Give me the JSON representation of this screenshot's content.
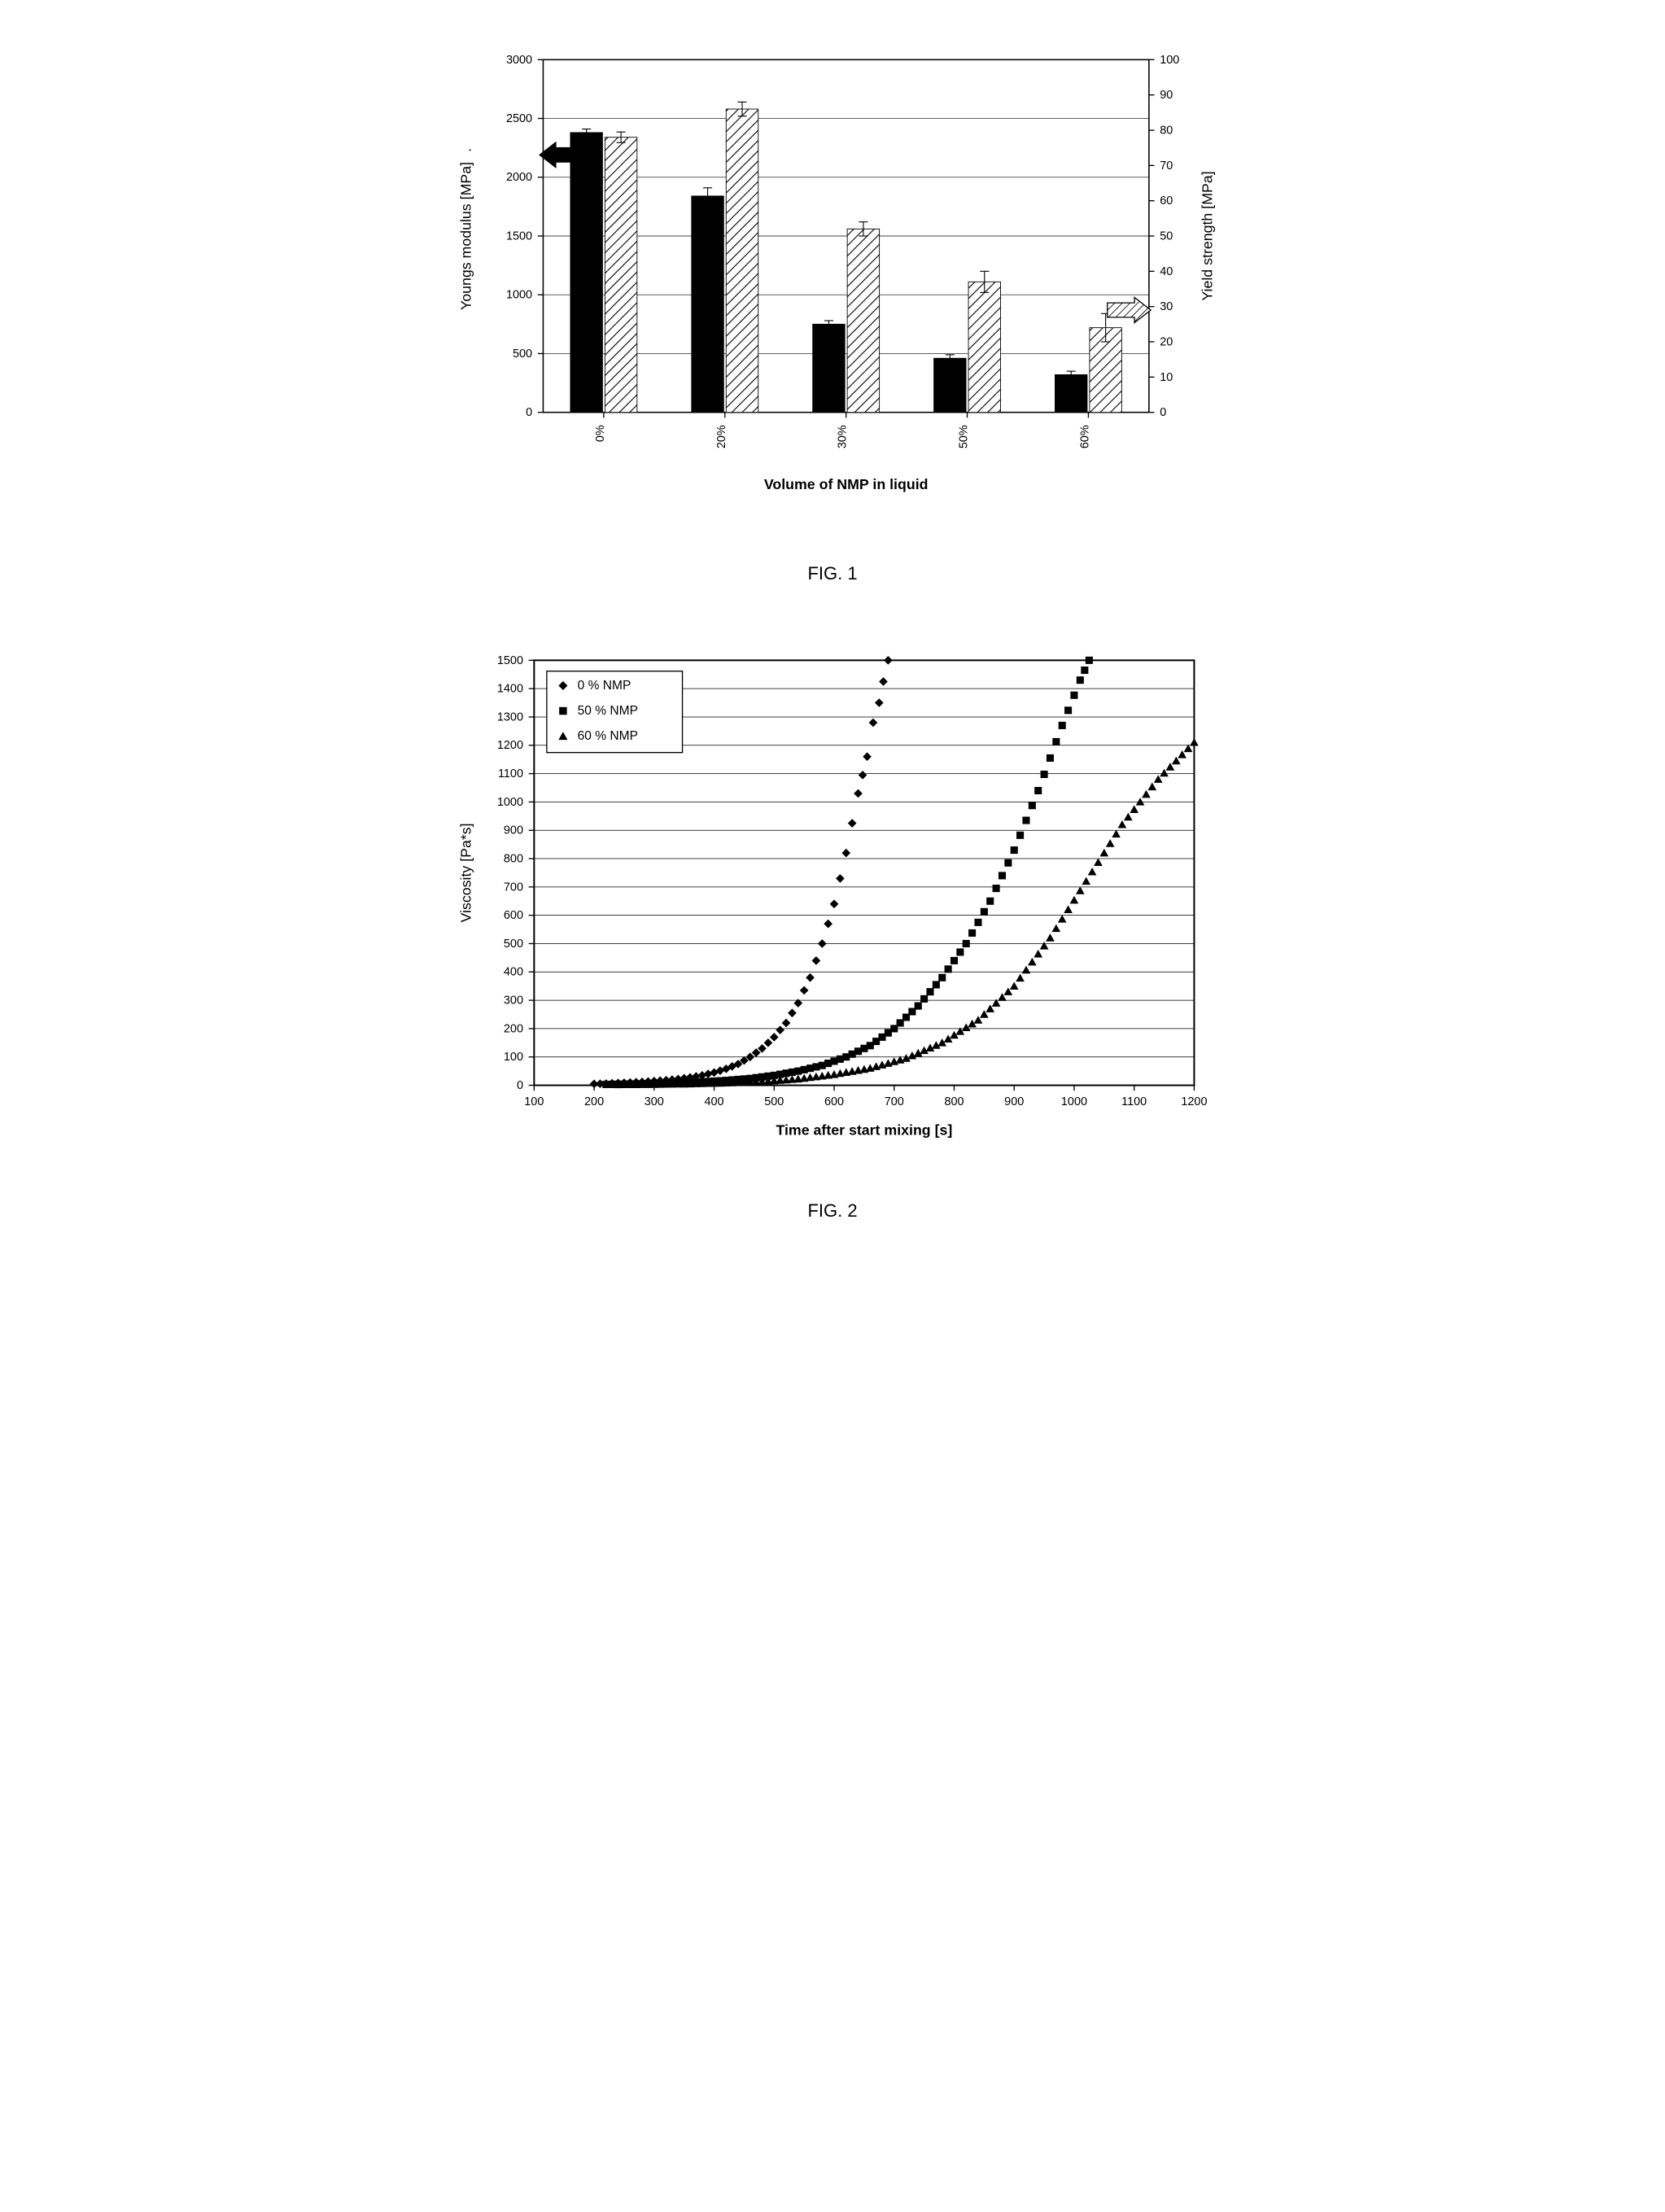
{
  "fig1": {
    "type": "bar",
    "caption": "FIG. 1",
    "xlabel": "Volume of NMP in liquid",
    "ylabel_left": "Youngs modulus [MPa]",
    "ylabel_right": "Yield strength [MPa]",
    "categories": [
      "0%",
      "20%",
      "30%",
      "50%",
      "60%"
    ],
    "left_axis": {
      "min": 0,
      "max": 3000,
      "step": 500
    },
    "right_axis": {
      "min": 0,
      "max": 100,
      "step": 10
    },
    "series": [
      {
        "name": "youngs",
        "fill": "#000000",
        "values": [
          2380,
          1840,
          750,
          460,
          320
        ],
        "errors": [
          30,
          70,
          30,
          30,
          30
        ],
        "axis": "left"
      },
      {
        "name": "yield",
        "fill": "hatch",
        "values": [
          78,
          86,
          52,
          37,
          24
        ],
        "errors": [
          1.5,
          2,
          2,
          3,
          4
        ],
        "axis": "right"
      }
    ],
    "colors": {
      "axis": "#000000",
      "grid": "#000000",
      "tick_text": "#000000",
      "hatch_stroke": "#000000",
      "background": "#ffffff"
    },
    "bar_group_width": 0.55,
    "bar_gap": 0.02,
    "label_fontsize": 16,
    "tick_fontsize": 13
  },
  "fig2": {
    "type": "scatter",
    "caption": "FIG. 2",
    "xlabel": "Time after start mixing  [s]",
    "ylabel": "Viscosity  [Pa*s]",
    "x_axis": {
      "min": 100,
      "max": 1200,
      "step": 100
    },
    "y_axis": {
      "min": 0,
      "max": 1500,
      "step": 100
    },
    "legend_items": [
      {
        "marker": "diamond",
        "label": "0 % NMP"
      },
      {
        "marker": "square",
        "label": "50 % NMP"
      },
      {
        "marker": "triangle",
        "label": "60 % NMP"
      }
    ],
    "series": [
      {
        "name": "0 % NMP",
        "marker": "diamond",
        "color": "#000000",
        "points": [
          [
            200,
            5
          ],
          [
            220,
            6
          ],
          [
            240,
            8
          ],
          [
            260,
            10
          ],
          [
            280,
            12
          ],
          [
            300,
            15
          ],
          [
            320,
            18
          ],
          [
            340,
            22
          ],
          [
            360,
            28
          ],
          [
            380,
            35
          ],
          [
            400,
            45
          ],
          [
            420,
            58
          ],
          [
            440,
            75
          ],
          [
            460,
            100
          ],
          [
            480,
            130
          ],
          [
            500,
            170
          ],
          [
            520,
            220
          ],
          [
            540,
            290
          ],
          [
            560,
            380
          ],
          [
            580,
            500
          ],
          [
            600,
            640
          ],
          [
            620,
            820
          ],
          [
            640,
            1030
          ],
          [
            655,
            1160
          ],
          [
            665,
            1280
          ],
          [
            675,
            1350
          ],
          [
            682,
            1425
          ],
          [
            690,
            1500
          ]
        ]
      },
      {
        "name": "50 % NMP",
        "marker": "square",
        "color": "#000000",
        "points": [
          [
            220,
            3
          ],
          [
            260,
            4
          ],
          [
            300,
            6
          ],
          [
            340,
            8
          ],
          [
            380,
            12
          ],
          [
            420,
            17
          ],
          [
            460,
            24
          ],
          [
            500,
            35
          ],
          [
            540,
            50
          ],
          [
            580,
            70
          ],
          [
            620,
            100
          ],
          [
            660,
            140
          ],
          [
            700,
            200
          ],
          [
            740,
            280
          ],
          [
            780,
            380
          ],
          [
            820,
            500
          ],
          [
            860,
            650
          ],
          [
            900,
            830
          ],
          [
            940,
            1040
          ],
          [
            980,
            1270
          ],
          [
            1010,
            1430
          ],
          [
            1025,
            1500
          ]
        ]
      },
      {
        "name": "60 % NMP",
        "marker": "triangle",
        "color": "#000000",
        "points": [
          [
            240,
            2
          ],
          [
            300,
            3
          ],
          [
            360,
            5
          ],
          [
            420,
            8
          ],
          [
            480,
            13
          ],
          [
            540,
            22
          ],
          [
            600,
            38
          ],
          [
            660,
            60
          ],
          [
            720,
            95
          ],
          [
            780,
            150
          ],
          [
            840,
            230
          ],
          [
            900,
            350
          ],
          [
            960,
            520
          ],
          [
            1020,
            720
          ],
          [
            1080,
            920
          ],
          [
            1140,
            1080
          ],
          [
            1200,
            1210
          ]
        ]
      }
    ],
    "colors": {
      "border": "#000000",
      "grid": "#000000",
      "background": "#ffffff",
      "tick_text": "#000000",
      "legend_bg": "#ffffff",
      "legend_border": "#000000"
    },
    "marker_size": 6,
    "label_fontsize": 16,
    "tick_fontsize": 13
  }
}
